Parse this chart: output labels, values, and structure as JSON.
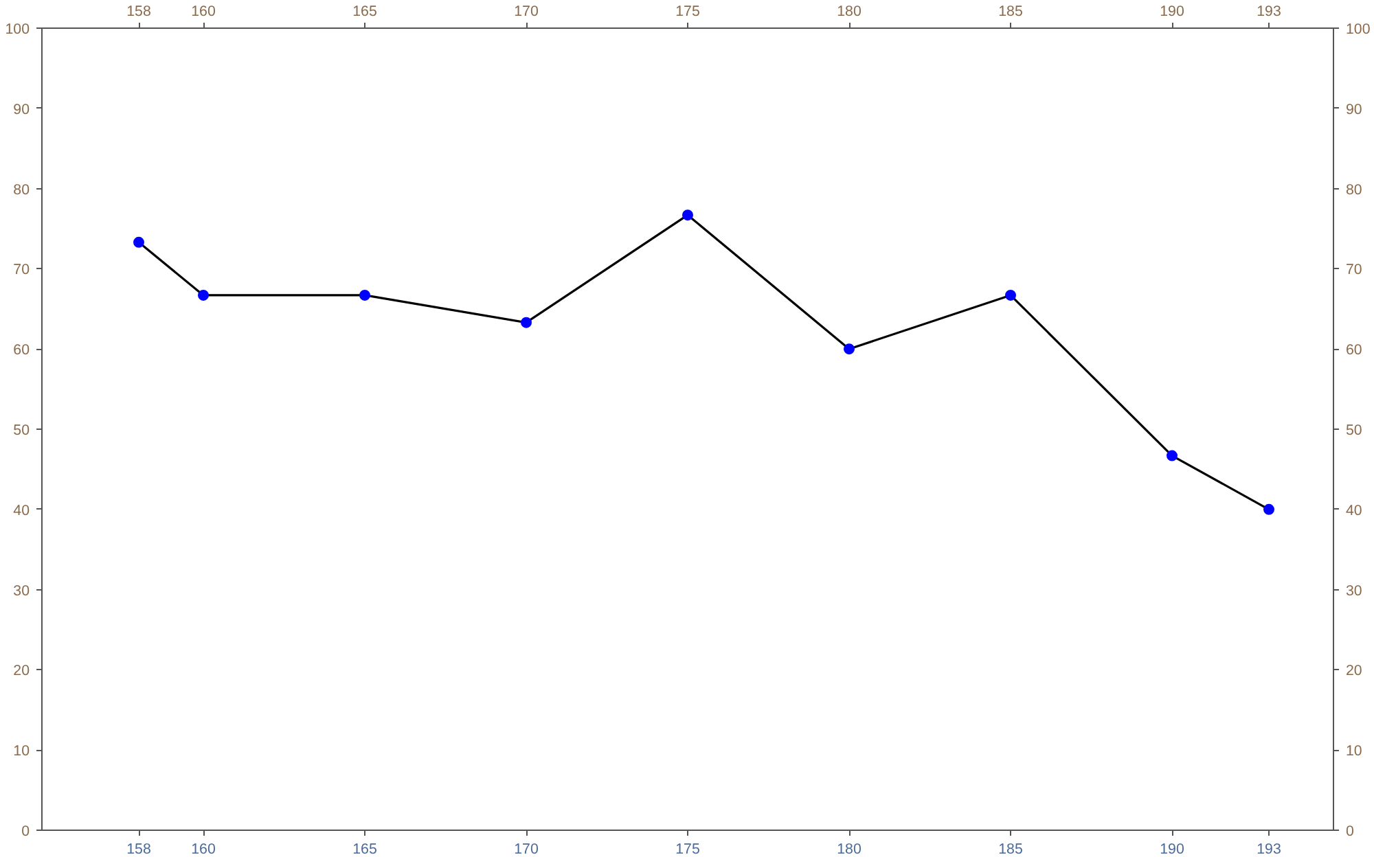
{
  "chart_data": {
    "type": "line",
    "x": [
      158,
      160,
      165,
      170,
      175,
      180,
      185,
      190,
      193
    ],
    "series": [
      {
        "color": "#0000ff",
        "values": [
          73.3,
          66.7,
          66.7,
          63.3,
          76.7,
          60.0,
          66.7,
          46.7,
          40.0
        ]
      }
    ],
    "xlim": [
      155,
      195
    ],
    "xticks": [
      158,
      160,
      165,
      170,
      175,
      180,
      185,
      190,
      193
    ],
    "x2lim": [
      155,
      195
    ],
    "x2ticks": [
      158,
      160,
      165,
      170,
      175,
      180,
      185,
      190,
      193
    ],
    "ylim": [
      0,
      100
    ],
    "yticks": [
      0,
      10,
      20,
      30,
      40,
      50,
      60,
      70,
      80,
      90,
      100
    ],
    "y2lim": [
      0,
      100
    ],
    "y2ticks": [
      0,
      10,
      20,
      30,
      40,
      50,
      60,
      70,
      80,
      90,
      100
    ],
    "marker": "circle",
    "line_style": "solid",
    "grid": false
  }
}
